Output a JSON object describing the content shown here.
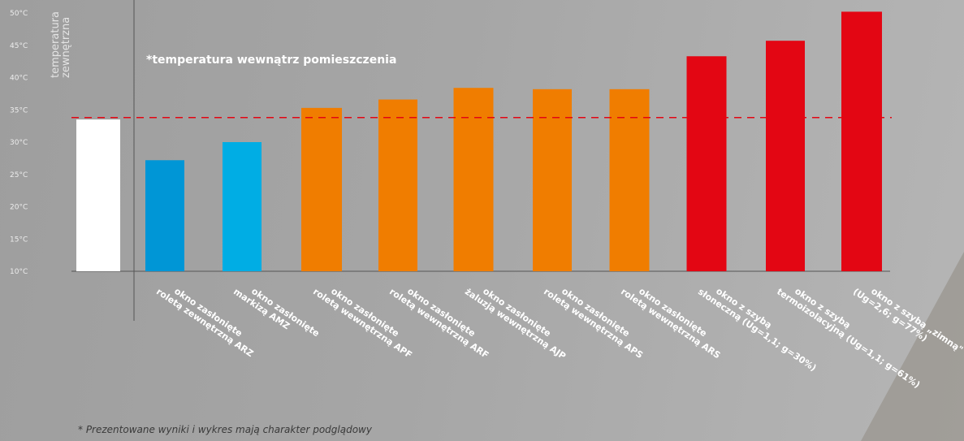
{
  "note": "*temperatura wewnątrz pomieszczenia",
  "side_label": "temperatura\nzewnętrzna",
  "footnote": "* Prezentowane wyniki i wykres mają charakter podglądowy",
  "colors": {
    "reference": "#ffffff",
    "blue_dark": "#0096d6",
    "blue_light": "#00ade4",
    "orange": "#f07d00",
    "red": "#e30613",
    "dashed_line": "#e30613"
  },
  "chart_data": {
    "type": "bar",
    "ylim": [
      10,
      50
    ],
    "yticks": [
      "10°C",
      "15°C",
      "20°C",
      "25°C",
      "30°C",
      "35°C",
      "40°C",
      "45°C",
      "50°C"
    ],
    "reference_line": 33.8,
    "grid": false,
    "categories": [
      "",
      "okno zasłonięte\nroletą zewnętrzną ARZ",
      "okno zasłonięte\nmarkizą AMZ",
      "okno zasłonięte\nroletą wewnętrzną APF",
      "okno zasłonięte\nroletą wewnętrzną ARF",
      "okno zasłonięte\nżaluzją wewnętrzną AJP",
      "okno zasłonięte\nroletą wewnętrzną APS",
      "okno zasłonięte\nroletą wewnętrzną ARS",
      "okno z szybą\nsłoneczną (Ug=1,1; g=30%)",
      "okno z szybą\ntermoizolacyjną (Ug=1,1; g=61%)",
      "okno z szybą „zimną\"\n(Ug=2,6; g=77%)"
    ],
    "values": [
      33.5,
      27.2,
      30.0,
      35.3,
      36.6,
      38.4,
      38.2,
      38.2,
      43.3,
      45.7,
      50.2
    ],
    "bar_colors": [
      "#ffffff",
      "#0096d6",
      "#00ade4",
      "#f07d00",
      "#f07d00",
      "#f07d00",
      "#f07d00",
      "#f07d00",
      "#e30613",
      "#e30613",
      "#e30613"
    ]
  }
}
